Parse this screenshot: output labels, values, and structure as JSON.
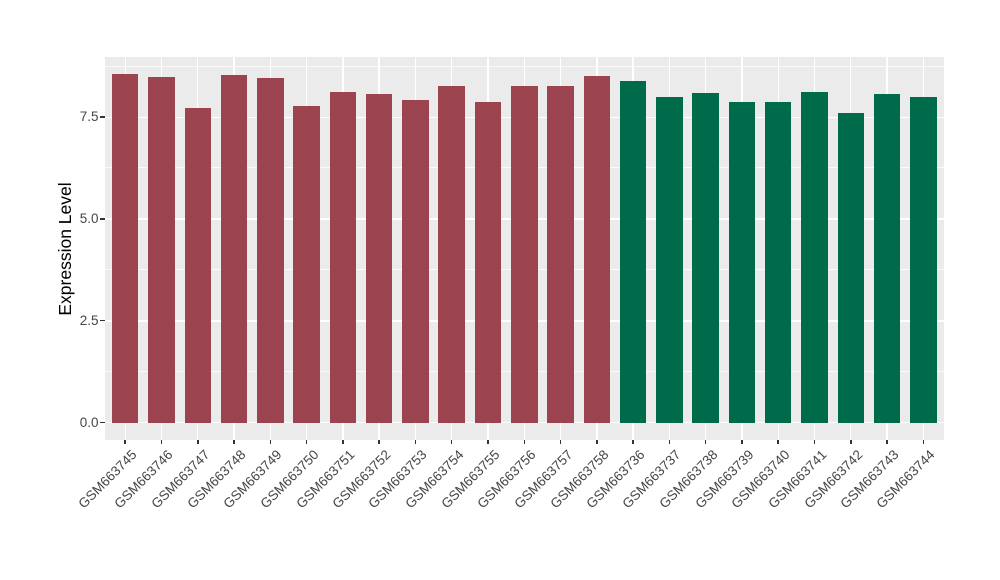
{
  "chart_data": {
    "type": "bar",
    "title": "",
    "xlabel": "",
    "ylabel": "Expression Level",
    "legend_position": "none",
    "grid": "on",
    "panel_bg": "#EBEBEB",
    "grid_color": "#FFFFFF",
    "axis_text_color": "#454545",
    "ylim": [
      -0.42,
      8.96
    ],
    "yticks": [
      0,
      2.5,
      5,
      7.5
    ],
    "ytick_labels": [
      "0.0",
      "2.5",
      "5.0",
      "7.5"
    ],
    "minor_yticks": [
      1.25,
      3.75,
      6.25,
      8.75
    ],
    "series": [
      {
        "name": "group_red",
        "color": "#9B4450",
        "categories": [
          "GSM663745",
          "GSM663746",
          "GSM663747",
          "GSM663748",
          "GSM663749",
          "GSM663750",
          "GSM663751",
          "GSM663752",
          "GSM663753",
          "GSM663754",
          "GSM663755",
          "GSM663756",
          "GSM663757",
          "GSM663758"
        ],
        "values": [
          8.56,
          8.48,
          7.72,
          8.54,
          8.45,
          7.78,
          8.11,
          8.07,
          7.91,
          8.25,
          7.87,
          8.27,
          8.25,
          8.51
        ]
      },
      {
        "name": "group_green",
        "color": "#006B4A",
        "categories": [
          "GSM663736",
          "GSM663737",
          "GSM663738",
          "GSM663739",
          "GSM663740",
          "GSM663741",
          "GSM663742",
          "GSM663743",
          "GSM663744"
        ],
        "values": [
          8.38,
          8.0,
          8.08,
          7.88,
          7.87,
          8.11,
          7.6,
          8.06,
          8.0
        ]
      }
    ]
  }
}
